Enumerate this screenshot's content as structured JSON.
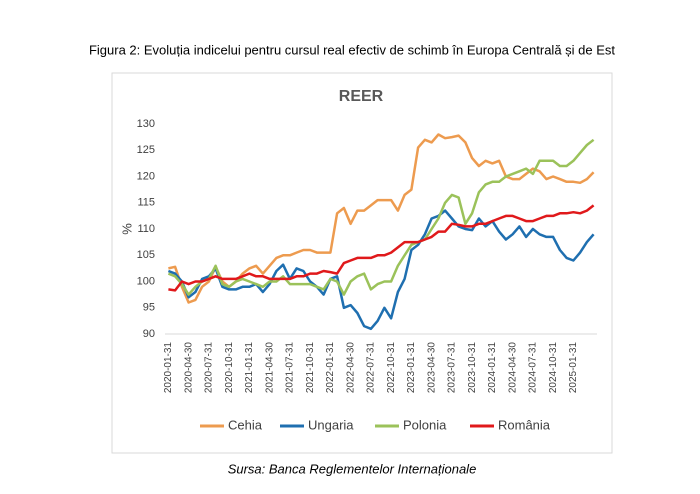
{
  "chart_data": {
    "type": "line",
    "caption": "Figura 2: Evoluția indicelui pentru cursul real efectiv de schimb în Europa Centrală și de Est",
    "title": "REER",
    "y_label": "%",
    "source": "Sursa: Banca Reglementelor Internaționale",
    "categories": [
      "2020-01-31",
      null,
      null,
      "2020-04-30",
      null,
      null,
      "2020-07-31",
      null,
      null,
      "2020-10-31",
      null,
      null,
      "2021-01-31",
      null,
      null,
      "2021-04-30",
      null,
      null,
      "2021-07-31",
      null,
      null,
      "2021-10-31",
      null,
      null,
      "2022-01-31",
      null,
      null,
      "2022-04-30",
      null,
      null,
      "2022-07-31",
      null,
      null,
      "2022-10-31",
      null,
      null,
      "2023-01-31",
      null,
      null,
      "2023-04-30",
      null,
      null,
      "2023-07-31",
      null,
      null,
      "2023-10-31",
      null,
      null,
      "2024-01-31",
      null,
      null,
      "2024-04-30",
      null,
      null,
      "2024-07-31",
      null,
      null,
      "2024-10-31",
      null,
      null,
      "2025-01-31",
      null,
      null,
      null
    ],
    "ylim": [
      90,
      130
    ],
    "yticks": [
      90,
      95,
      100,
      105,
      110,
      115,
      120,
      125,
      130
    ],
    "grid": false,
    "legend": "bottom",
    "series": [
      {
        "name": "Cehia",
        "color": "#ed9b4f",
        "values": [
          102.5,
          102.8,
          99,
          96,
          96.5,
          99,
          100,
          102.8,
          100,
          99,
          100,
          101.5,
          102.5,
          103,
          101.5,
          103,
          104.5,
          105,
          105,
          105.5,
          106,
          106,
          105.5,
          105.5,
          105.5,
          113,
          114,
          111,
          113.5,
          113.5,
          114.5,
          115.5,
          115.5,
          115.5,
          113.5,
          116.5,
          117.5,
          125.5,
          127,
          126.5,
          128,
          127.3,
          127.5,
          127.8,
          126.5,
          123.5,
          122,
          123,
          122.5,
          123,
          120,
          119.5,
          119.5,
          120.5,
          121.5,
          121,
          119.5,
          120,
          119.5,
          119,
          119,
          118.8,
          119.5,
          120.8
        ]
      },
      {
        "name": "Ungaria",
        "color": "#1f6fb0",
        "values": [
          102,
          101.5,
          100,
          97,
          98,
          100.5,
          101,
          102.5,
          99,
          98.5,
          98.5,
          99,
          99,
          99.5,
          98,
          99.5,
          102,
          103.2,
          100.5,
          102.5,
          102,
          100,
          99,
          97.5,
          100.5,
          101,
          95,
          95.5,
          94,
          91.5,
          91,
          92.5,
          95,
          93,
          98,
          100.5,
          106,
          107,
          109,
          112,
          112.5,
          113.5,
          112,
          110.5,
          110,
          109.8,
          112,
          110.5,
          111.5,
          109.5,
          108,
          109,
          110.5,
          108.5,
          110,
          109,
          108.5,
          108.5,
          106,
          104.5,
          104,
          105.5,
          107.5,
          109
        ]
      },
      {
        "name": "Polonia",
        "color": "#9bc25a",
        "values": [
          101.5,
          101,
          99.5,
          97.5,
          99,
          100,
          100.5,
          103,
          99.5,
          99,
          100,
          100.5,
          100,
          99.5,
          99,
          100,
          100,
          101,
          99.5,
          99.5,
          99.5,
          99.5,
          99,
          98.5,
          100.5,
          100,
          97.5,
          100,
          101,
          101.5,
          98.5,
          99.5,
          100,
          100,
          103,
          105,
          107,
          107.5,
          108,
          110,
          112,
          115,
          116.5,
          116,
          111,
          113,
          117,
          118.5,
          119,
          119,
          120,
          120.5,
          121,
          121.5,
          120.5,
          123,
          123,
          123,
          122,
          122,
          123,
          124.5,
          126,
          127
        ]
      },
      {
        "name": "România",
        "color": "#e0191b",
        "values": [
          98.5,
          98.3,
          100,
          99.5,
          100,
          100,
          100.5,
          101,
          100.5,
          100.5,
          100.5,
          101,
          101.5,
          101,
          101,
          100.5,
          100.5,
          100.5,
          100.5,
          101,
          101,
          101.5,
          101.5,
          102,
          101.8,
          101.5,
          103.5,
          104,
          104.5,
          104.5,
          104.5,
          105,
          105,
          105.5,
          106.5,
          107.5,
          107.5,
          107.5,
          108,
          108.5,
          109.5,
          109.5,
          111,
          110.8,
          110.5,
          110.5,
          111,
          111,
          111.5,
          112,
          112.5,
          112.5,
          112,
          111.5,
          111.5,
          112,
          112.5,
          112.5,
          113,
          113,
          113.2,
          113,
          113.5,
          114.5
        ]
      }
    ]
  }
}
